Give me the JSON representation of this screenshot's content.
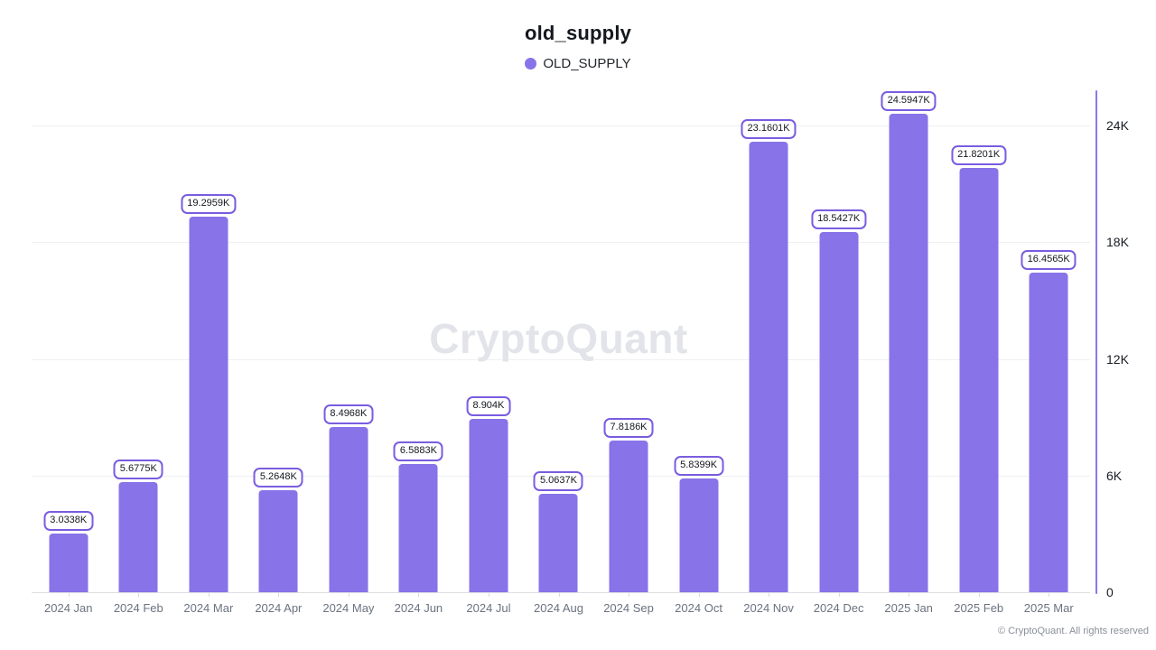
{
  "header": {
    "title": "old_supply",
    "legend_label": "OLD_SUPPLY"
  },
  "watermark": "CryptoQuant",
  "footer": "© CryptoQuant. All rights reserved",
  "colors": {
    "bar": "#8873e8",
    "label_border": "#7a5ce0",
    "axis_line": "#8a78ea",
    "grid": "#eef0f3"
  },
  "chart_data": {
    "type": "bar",
    "title": "old_supply",
    "legend": [
      "OLD_SUPPLY"
    ],
    "legend_position": "top",
    "grid": true,
    "xlabel": "",
    "ylabel": "",
    "categories": [
      "2024 Jan",
      "2024 Feb",
      "2024 Mar",
      "2024 Apr",
      "2024 May",
      "2024 Jun",
      "2024 Jul",
      "2024 Aug",
      "2024 Sep",
      "2024 Oct",
      "2024 Nov",
      "2024 Dec",
      "2025 Jan",
      "2025 Feb",
      "2025 Mar"
    ],
    "values": [
      3033.8,
      5677.5,
      19295.9,
      5264.8,
      8496.8,
      6588.3,
      8904,
      5063.7,
      7818.6,
      5839.9,
      23160.1,
      18542.7,
      24594.7,
      21820.1,
      16456.5
    ],
    "value_labels": [
      "3.0338K",
      "5.6775K",
      "19.2959K",
      "5.2648K",
      "8.4968K",
      "6.5883K",
      "8.904K",
      "5.0637K",
      "7.8186K",
      "5.8399K",
      "23.1601K",
      "18.5427K",
      "24.5947K",
      "21.8201K",
      "16.4565K"
    ],
    "y_ticks": [
      {
        "value": 0,
        "label": "0"
      },
      {
        "value": 6000,
        "label": "6K"
      },
      {
        "value": 12000,
        "label": "12K"
      },
      {
        "value": 18000,
        "label": "18K"
      },
      {
        "value": 24000,
        "label": "24K"
      }
    ],
    "ylim": [
      0,
      25800
    ]
  }
}
